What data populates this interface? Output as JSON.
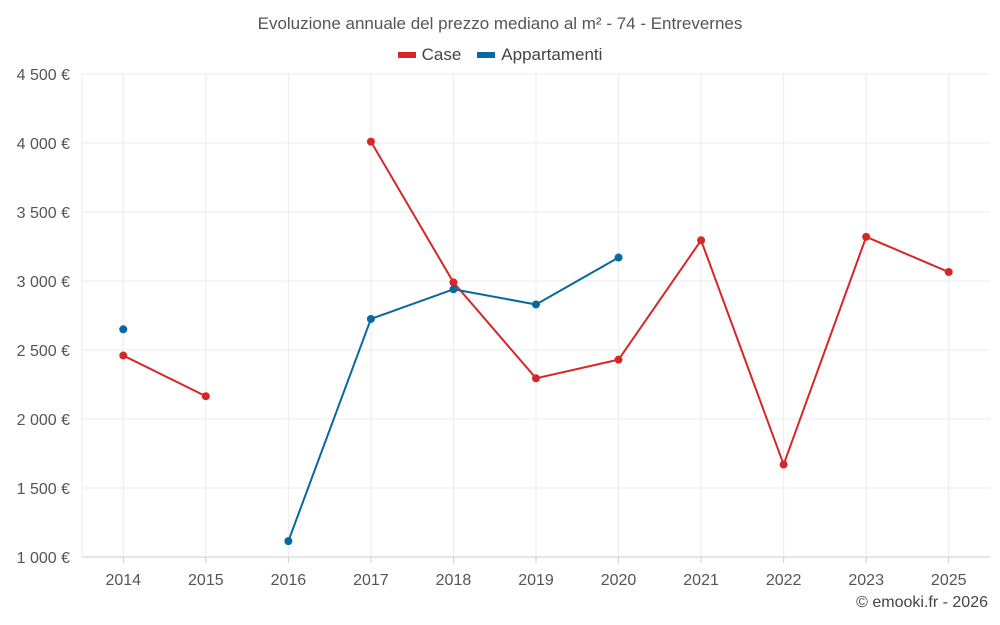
{
  "chart_data": {
    "type": "line",
    "title": "Evoluzione annuale del prezzo mediano al m² - 74 - Entrevernes",
    "categories": [
      "2014",
      "2015",
      "2016",
      "2017",
      "2018",
      "2019",
      "2020",
      "2021",
      "2022",
      "2023",
      "2025"
    ],
    "y_ticks": [
      1000,
      1500,
      2000,
      2500,
      3000,
      3500,
      4000,
      4500
    ],
    "y_tick_labels": [
      "1 000 €",
      "1 500 €",
      "2 000 €",
      "2 500 €",
      "3 000 €",
      "3 500 €",
      "4 000 €",
      "4 500 €"
    ],
    "ylim": [
      1000,
      4500
    ],
    "grid": true,
    "legend_position": "top-center",
    "series": [
      {
        "name": "Case",
        "color": "#d62728",
        "values": [
          2460,
          2165,
          null,
          4010,
          2990,
          2295,
          2430,
          3295,
          1670,
          3320,
          3065
        ]
      },
      {
        "name": "Appartamenti",
        "color": "#0868a0",
        "values": [
          2650,
          null,
          1115,
          2725,
          2940,
          2830,
          3170,
          null,
          null,
          null,
          null
        ]
      }
    ]
  },
  "footer": {
    "copyright": "© emooki.fr - 2026"
  }
}
